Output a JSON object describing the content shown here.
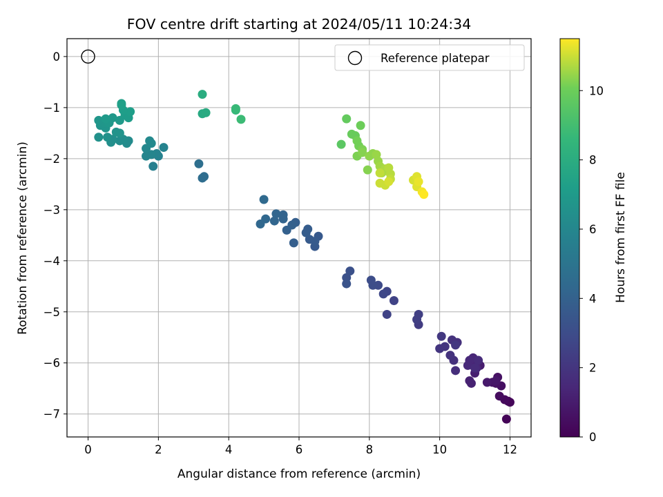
{
  "chart_data": {
    "type": "scatter",
    "title": "FOV centre drift starting at 2024/05/11 10:24:34",
    "xlabel": "Angular distance from reference (arcmin)",
    "ylabel": "Rotation from reference (arcmin)",
    "xlim": [
      -0.6,
      12.6
    ],
    "ylim": [
      -7.45,
      0.35
    ],
    "xticks": [
      0,
      2,
      4,
      6,
      8,
      10,
      12
    ],
    "yticks": [
      0,
      -1,
      -2,
      -3,
      -4,
      -5,
      -6,
      -7
    ],
    "grid": true,
    "legend": {
      "placement": "top-right",
      "entries": [
        "Reference platepar"
      ]
    },
    "reference_point": {
      "x": 0,
      "y": 0
    },
    "colorbar": {
      "label": "Hours from first FF file",
      "colormap": "viridis",
      "range": [
        0,
        11.5
      ],
      "ticks": [
        0,
        2,
        4,
        6,
        8,
        10
      ]
    },
    "points": [
      [
        11.9,
        -7.1,
        0.1
      ],
      [
        11.95,
        -6.75,
        0.2
      ],
      [
        12.0,
        -6.77,
        0.2
      ],
      [
        11.85,
        -6.72,
        0.3
      ],
      [
        11.7,
        -6.65,
        0.4
      ],
      [
        11.75,
        -6.45,
        0.5
      ],
      [
        11.6,
        -6.4,
        0.6
      ],
      [
        11.65,
        -6.28,
        0.6
      ],
      [
        11.5,
        -6.38,
        0.7
      ],
      [
        11.6,
        -6.35,
        0.8
      ],
      [
        11.35,
        -6.38,
        0.9
      ],
      [
        11.15,
        -6.05,
        1.0
      ],
      [
        11.0,
        -6.2,
        1.1
      ],
      [
        10.85,
        -6.35,
        1.2
      ],
      [
        10.9,
        -6.4,
        1.2
      ],
      [
        11.0,
        -6.0,
        1.3
      ],
      [
        10.95,
        -5.9,
        1.4
      ],
      [
        11.05,
        -6.1,
        1.4
      ],
      [
        10.85,
        -5.95,
        1.5
      ],
      [
        10.8,
        -6.05,
        1.5
      ],
      [
        11.1,
        -5.95,
        1.6
      ],
      [
        11.0,
        -6.1,
        1.6
      ],
      [
        10.45,
        -6.15,
        1.7
      ],
      [
        10.5,
        -5.6,
        1.8
      ],
      [
        10.4,
        -5.95,
        1.8
      ],
      [
        10.3,
        -5.85,
        1.9
      ],
      [
        10.35,
        -5.55,
        1.9
      ],
      [
        10.15,
        -5.68,
        2.0
      ],
      [
        10.0,
        -5.72,
        2.0
      ],
      [
        10.05,
        -5.48,
        2.1
      ],
      [
        10.45,
        -5.65,
        2.1
      ],
      [
        9.4,
        -5.25,
        2.3
      ],
      [
        9.35,
        -5.15,
        2.4
      ],
      [
        9.4,
        -5.05,
        2.4
      ],
      [
        8.7,
        -4.78,
        2.6
      ],
      [
        8.5,
        -5.05,
        2.6
      ],
      [
        8.5,
        -4.6,
        2.7
      ],
      [
        8.4,
        -4.65,
        2.8
      ],
      [
        8.25,
        -4.48,
        2.9
      ],
      [
        8.1,
        -4.48,
        3.0
      ],
      [
        8.05,
        -4.38,
        3.0
      ],
      [
        7.45,
        -4.2,
        3.2
      ],
      [
        7.35,
        -4.33,
        3.2
      ],
      [
        7.35,
        -4.45,
        3.3
      ],
      [
        6.45,
        -3.72,
        3.6
      ],
      [
        6.55,
        -3.52,
        3.6
      ],
      [
        6.45,
        -3.62,
        3.7
      ],
      [
        6.3,
        -3.58,
        3.7
      ],
      [
        6.25,
        -3.38,
        3.8
      ],
      [
        6.2,
        -3.45,
        3.8
      ],
      [
        5.85,
        -3.65,
        3.9
      ],
      [
        5.9,
        -3.25,
        3.9
      ],
      [
        5.8,
        -3.3,
        4.0
      ],
      [
        5.65,
        -3.4,
        4.0
      ],
      [
        5.55,
        -3.1,
        4.1
      ],
      [
        5.55,
        -3.18,
        4.1
      ],
      [
        5.35,
        -3.08,
        4.2
      ],
      [
        5.3,
        -3.22,
        4.2
      ],
      [
        5.05,
        -3.18,
        4.3
      ],
      [
        4.9,
        -3.28,
        4.3
      ],
      [
        5.0,
        -2.8,
        4.4
      ],
      [
        3.25,
        -2.38,
        4.6
      ],
      [
        3.3,
        -2.35,
        4.6
      ],
      [
        3.15,
        -2.1,
        4.7
      ],
      [
        1.85,
        -2.15,
        5.6
      ],
      [
        2.0,
        -1.95,
        5.7
      ],
      [
        2.15,
        -1.78,
        5.8
      ],
      [
        1.95,
        -1.9,
        5.8
      ],
      [
        1.8,
        -1.92,
        5.9
      ],
      [
        1.65,
        -1.95,
        5.9
      ],
      [
        1.65,
        -1.8,
        6.0
      ],
      [
        1.75,
        -1.65,
        6.1
      ],
      [
        1.8,
        -1.7,
        6.1
      ],
      [
        1.15,
        -1.65,
        6.2
      ],
      [
        1.1,
        -1.7,
        6.2
      ],
      [
        1.0,
        -1.62,
        6.3
      ],
      [
        0.9,
        -1.65,
        6.3
      ],
      [
        0.7,
        -1.62,
        6.4
      ],
      [
        0.65,
        -1.68,
        6.4
      ],
      [
        0.55,
        -1.58,
        6.5
      ],
      [
        0.3,
        -1.58,
        6.5
      ],
      [
        0.9,
        -1.5,
        6.6
      ],
      [
        0.8,
        -1.48,
        6.6
      ],
      [
        0.5,
        -1.4,
        6.7
      ],
      [
        0.35,
        -1.35,
        6.7
      ],
      [
        0.45,
        -1.3,
        6.8
      ],
      [
        0.3,
        -1.25,
        6.8
      ],
      [
        0.6,
        -1.3,
        6.9
      ],
      [
        0.7,
        -1.2,
        6.9
      ],
      [
        0.5,
        -1.22,
        7.0
      ],
      [
        0.9,
        -1.25,
        7.0
      ],
      [
        1.05,
        -1.15,
        7.1
      ],
      [
        1.15,
        -1.2,
        7.1
      ],
      [
        1.2,
        -1.08,
        7.2
      ],
      [
        1.0,
        -1.05,
        7.2
      ],
      [
        0.95,
        -0.95,
        7.3
      ],
      [
        0.95,
        -0.92,
        7.3
      ],
      [
        3.25,
        -1.12,
        7.8
      ],
      [
        3.35,
        -1.1,
        7.9
      ],
      [
        3.25,
        -0.74,
        8.0
      ],
      [
        4.2,
        -1.05,
        8.6
      ],
      [
        4.2,
        -1.02,
        8.7
      ],
      [
        4.35,
        -1.23,
        8.8
      ],
      [
        7.2,
        -1.72,
        9.6
      ],
      [
        7.35,
        -1.22,
        9.8
      ],
      [
        7.5,
        -1.52,
        9.9
      ],
      [
        7.6,
        -1.55,
        9.9
      ],
      [
        7.75,
        -1.35,
        10.0
      ],
      [
        7.65,
        -1.65,
        10.1
      ],
      [
        7.7,
        -1.75,
        10.1
      ],
      [
        7.8,
        -1.82,
        10.2
      ],
      [
        7.65,
        -1.95,
        10.2
      ],
      [
        7.8,
        -1.88,
        10.3
      ],
      [
        7.95,
        -2.22,
        10.3
      ],
      [
        8.0,
        -1.95,
        10.4
      ],
      [
        8.1,
        -1.9,
        10.4
      ],
      [
        8.2,
        -1.92,
        10.5
      ],
      [
        8.25,
        -2.05,
        10.5
      ],
      [
        8.3,
        -2.15,
        10.6
      ],
      [
        8.35,
        -2.28,
        10.6
      ],
      [
        8.4,
        -2.25,
        10.7
      ],
      [
        8.45,
        -2.2,
        10.7
      ],
      [
        8.55,
        -2.18,
        10.8
      ],
      [
        8.6,
        -2.3,
        10.8
      ],
      [
        8.6,
        -2.4,
        10.9
      ],
      [
        8.3,
        -2.28,
        10.9
      ],
      [
        8.3,
        -2.48,
        11.0
      ],
      [
        8.45,
        -2.52,
        11.0
      ],
      [
        8.55,
        -2.45,
        11.1
      ],
      [
        9.25,
        -2.42,
        11.1
      ],
      [
        9.35,
        -2.55,
        11.2
      ],
      [
        9.35,
        -2.35,
        11.2
      ],
      [
        9.4,
        -2.45,
        11.3
      ],
      [
        9.5,
        -2.65,
        11.4
      ],
      [
        9.55,
        -2.7,
        11.5
      ]
    ]
  }
}
